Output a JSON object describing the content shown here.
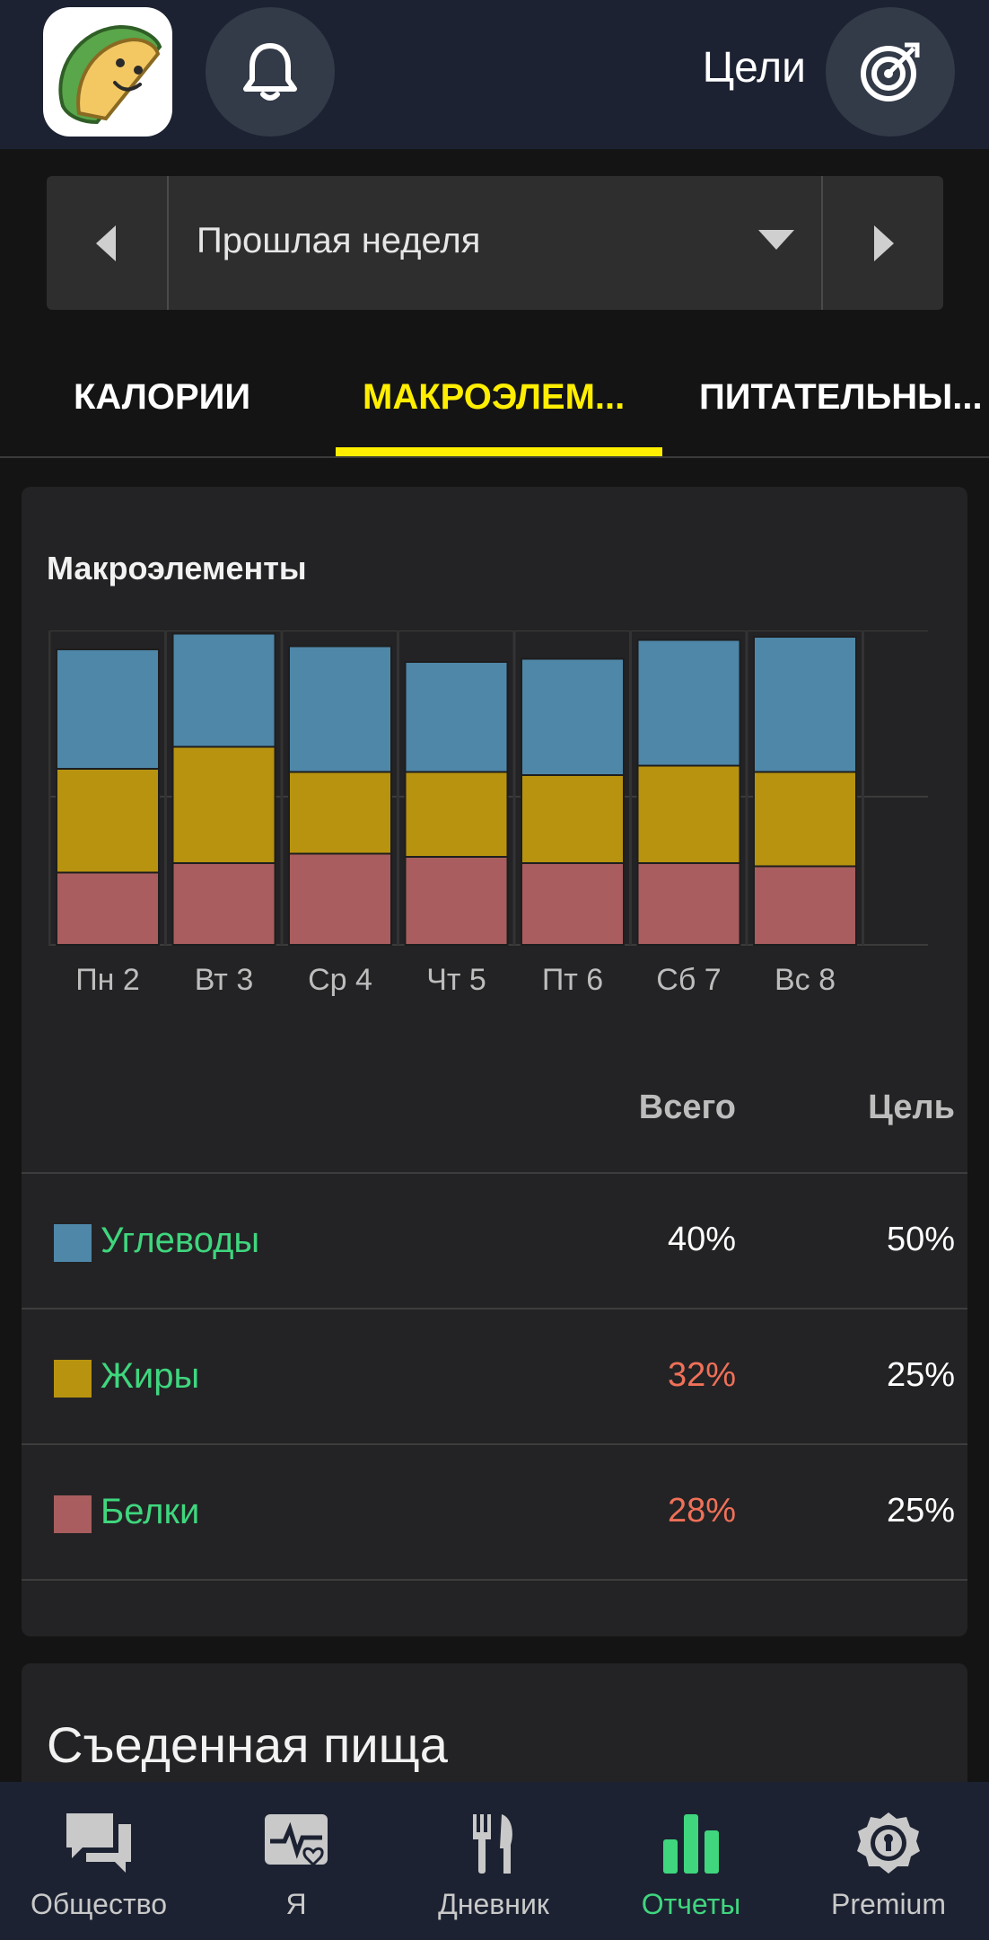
{
  "header": {
    "goals_label": "Цели"
  },
  "period": {
    "label": "Прошлая неделя"
  },
  "tabs": [
    {
      "label": "КАЛОРИИ"
    },
    {
      "label": "МАКРОЭЛЕМ..."
    },
    {
      "label": "ПИТАТЕЛЬНЫ..."
    }
  ],
  "macros_card": {
    "title": "Макроэлементы",
    "col_total": "Всего",
    "col_goal": "Цель",
    "rows": [
      {
        "name": "Углеводы",
        "total": "40%",
        "goal": "50%",
        "color": "#4e87a8"
      },
      {
        "name": "Жиры",
        "total": "32%",
        "goal": "25%",
        "color": "#b8930f"
      },
      {
        "name": "Белки",
        "total": "28%",
        "goal": "25%",
        "color": "#a95d5e"
      }
    ]
  },
  "chart_data": {
    "type": "bar",
    "stacked": true,
    "categories": [
      "Пн 2",
      "Вт 3",
      "Ср 4",
      "Чт 5",
      "Пт 6",
      "Сб 7",
      "Вс 8"
    ],
    "series": [
      {
        "name": "Белки",
        "color": "#a95d5e",
        "values": [
          0.23,
          0.26,
          0.29,
          0.28,
          0.26,
          0.26,
          0.25
        ]
      },
      {
        "name": "Жиры",
        "color": "#b8930f",
        "values": [
          0.33,
          0.37,
          0.26,
          0.27,
          0.28,
          0.31,
          0.3
        ]
      },
      {
        "name": "Углеводы",
        "color": "#4e87a8",
        "values": [
          0.38,
          0.36,
          0.4,
          0.35,
          0.37,
          0.4,
          0.43
        ]
      }
    ],
    "ylim": [
      0,
      1
    ],
    "grid": true
  },
  "food_card": {
    "title": "Съеденная пища"
  },
  "bottom_nav": [
    {
      "label": "Общество",
      "icon": "chat-icon"
    },
    {
      "label": "Я",
      "icon": "health-icon"
    },
    {
      "label": "Дневник",
      "icon": "fork-knife-icon"
    },
    {
      "label": "Отчеты",
      "icon": "bar-chart-icon",
      "active": true
    },
    {
      "label": "Premium",
      "icon": "premium-badge-icon"
    }
  ]
}
